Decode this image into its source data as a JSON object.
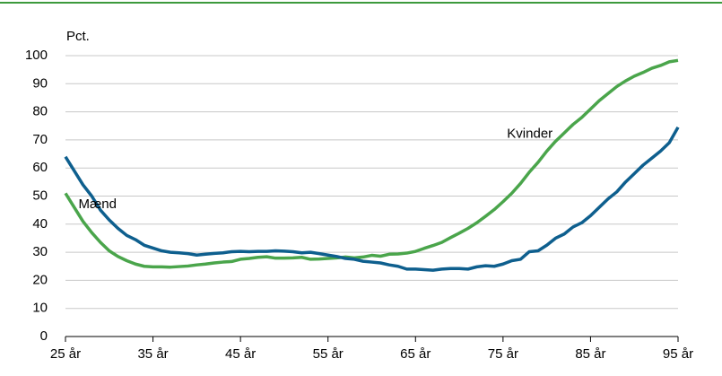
{
  "chart_data": {
    "type": "line",
    "ylabel": "Pct.",
    "x": [
      25,
      26,
      27,
      28,
      29,
      30,
      31,
      32,
      33,
      34,
      35,
      36,
      37,
      38,
      39,
      40,
      41,
      42,
      43,
      44,
      45,
      46,
      47,
      48,
      49,
      50,
      51,
      52,
      53,
      54,
      55,
      56,
      57,
      58,
      59,
      60,
      61,
      62,
      63,
      64,
      65,
      66,
      67,
      68,
      69,
      70,
      71,
      72,
      73,
      74,
      75,
      76,
      77,
      78,
      79,
      80,
      81,
      82,
      83,
      84,
      85,
      86,
      87,
      88,
      89,
      90,
      91,
      92,
      93,
      94,
      95
    ],
    "series": [
      {
        "name": "Kvinder",
        "color": "#4aa54b",
        "values": [
          51,
          46,
          41,
          37,
          33.5,
          30.5,
          28.5,
          27,
          25.8,
          25,
          24.8,
          24.8,
          24.7,
          24.9,
          25.1,
          25.5,
          25.8,
          26.2,
          26.5,
          26.7,
          27.5,
          27.8,
          28.2,
          28.4,
          27.9,
          27.9,
          28,
          28.2,
          27.5,
          27.6,
          27.8,
          28,
          28.3,
          28,
          28.3,
          28.9,
          28.6,
          29.3,
          29.4,
          29.7,
          30.3,
          31.4,
          32.4,
          33.5,
          35.2,
          36.8,
          38.5,
          40.5,
          42.8,
          45.2,
          48,
          51,
          54.5,
          58.5,
          62,
          66,
          69.5,
          72.5,
          75.5,
          78,
          81,
          84,
          86.5,
          89,
          91,
          92.7,
          94,
          95.5,
          96.5,
          97.8,
          98.3
        ]
      },
      {
        "name": "Mænd",
        "color": "#0e5f8e",
        "values": [
          64,
          59,
          54,
          50,
          45,
          41.5,
          38.5,
          36,
          34.5,
          32.5,
          31.5,
          30.5,
          30,
          29.8,
          29.5,
          29,
          29.3,
          29.6,
          29.8,
          30.2,
          30.3,
          30.2,
          30.3,
          30.3,
          30.5,
          30.4,
          30.2,
          29.8,
          30,
          29.5,
          29,
          28.5,
          27.8,
          27.5,
          26.8,
          26.5,
          26.2,
          25.5,
          25,
          24,
          24,
          23.8,
          23.6,
          24,
          24.2,
          24.2,
          24,
          24.8,
          25.2,
          25,
          25.8,
          27,
          27.5,
          30.2,
          30.5,
          32.5,
          35,
          36.5,
          39,
          40.5,
          43,
          46,
          49,
          51.5,
          55,
          58,
          61,
          63.5,
          66,
          69,
          74.5
        ]
      }
    ],
    "xlim": [
      25,
      95
    ],
    "xticks": [
      {
        "value": 25,
        "label": "25 år"
      },
      {
        "value": 35,
        "label": "35 år"
      },
      {
        "value": 45,
        "label": "45 år"
      },
      {
        "value": 55,
        "label": "55 år"
      },
      {
        "value": 65,
        "label": "65 år"
      },
      {
        "value": 75,
        "label": "75 år"
      },
      {
        "value": 85,
        "label": "85 år"
      },
      {
        "value": 95,
        "label": "95 år"
      }
    ],
    "ylim": [
      0,
      100
    ],
    "yticks": [
      0,
      10,
      20,
      30,
      40,
      50,
      60,
      70,
      80,
      90,
      100
    ],
    "grid": true
  }
}
